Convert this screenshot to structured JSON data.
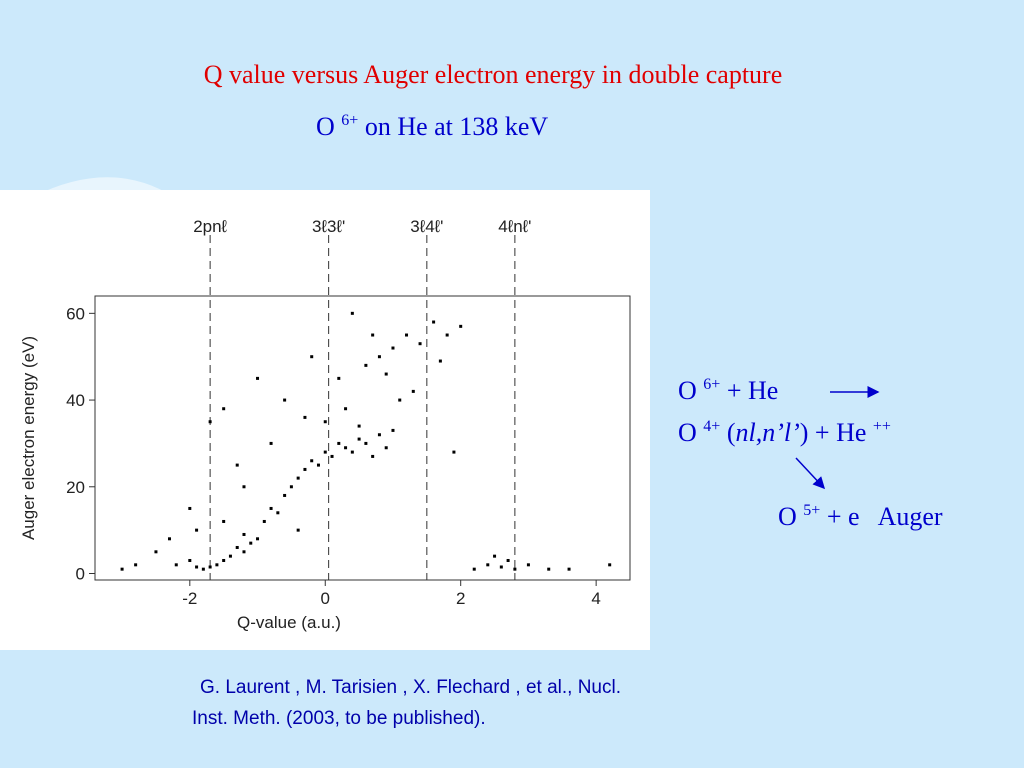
{
  "title": "Q value versus Auger electron energy in double capture",
  "subtitle": {
    "ion": "O",
    "charge": "6+",
    "rest": "on He at 138 keV"
  },
  "chart_data": {
    "type": "scatter",
    "x_label": "Q-value (a.u.)",
    "y_label": "Auger electron energy (eV)",
    "xlim": [
      -3.4,
      4.5
    ],
    "ylim": [
      -1.5,
      64
    ],
    "xticks": [
      -2,
      0,
      2,
      4
    ],
    "yticks": [
      0,
      20,
      40,
      60
    ],
    "color": "#000000",
    "markers": [
      {
        "label": "2pnℓ",
        "x": -1.7
      },
      {
        "label": "3ℓ3ℓ'",
        "x": 0.05
      },
      {
        "label": "3ℓ4ℓ'",
        "x": 1.5
      },
      {
        "label": "4ℓnℓ'",
        "x": 2.8
      }
    ],
    "x": [
      -2.2,
      -2.0,
      -1.9,
      -1.8,
      -1.7,
      -1.6,
      -1.5,
      -1.4,
      -1.3,
      -1.2,
      -1.1,
      -1.0,
      -2.3,
      -1.9,
      -1.5,
      -1.2,
      -0.9,
      -0.8,
      -0.7,
      -0.6,
      -0.5,
      -0.4,
      -0.3,
      -0.2,
      -0.1,
      0.0,
      0.1,
      0.2,
      0.3,
      0.4,
      0.5,
      0.6,
      0.7,
      0.8,
      0.9,
      1.0,
      -0.3,
      0.0,
      0.3,
      0.5,
      -0.6,
      0.2,
      0.6,
      0.8,
      1.0,
      1.2,
      1.4,
      1.6,
      1.8,
      2.0,
      0.4,
      0.9,
      1.3,
      1.7,
      -1.2,
      -0.8,
      -2.5,
      -1.7,
      -1.0,
      2.2,
      2.4,
      2.6,
      2.8,
      3.0,
      2.5,
      2.7,
      3.3,
      -3.0,
      -2.8,
      3.6,
      4.2,
      -0.2,
      0.7,
      1.1,
      -1.5,
      -1.3,
      -2.0,
      1.9,
      -0.4
    ],
    "y": [
      2,
      3,
      1.5,
      1,
      1.5,
      2,
      3,
      4,
      6,
      5,
      7,
      8,
      8,
      10,
      12,
      9,
      12,
      15,
      14,
      18,
      20,
      22,
      24,
      26,
      25,
      28,
      27,
      30,
      29,
      28,
      31,
      30,
      27,
      32,
      29,
      33,
      36,
      35,
      38,
      34,
      40,
      45,
      48,
      50,
      52,
      55,
      53,
      58,
      55,
      57,
      60,
      46,
      42,
      49,
      20,
      30,
      5,
      35,
      45,
      1,
      2,
      1.5,
      1,
      2,
      4,
      3,
      1,
      1,
      2,
      1,
      2,
      50,
      55,
      40,
      38,
      25,
      15,
      28,
      10
    ]
  },
  "reaction": {
    "line1": {
      "ion": "O",
      "charge": "6+",
      "rest": "+ He"
    },
    "line2": {
      "ion": "O",
      "charge": "4+",
      "open": "(",
      "state": "nl,n’l’",
      "close": ") + He",
      "target_charge": "++"
    },
    "line3": {
      "ion": "O",
      "charge": "5+",
      "rest": "+ e",
      "label": "Auger"
    }
  },
  "citation": [
    "G. Laurent , M. Tarisien , X. Flechard , et al., Nucl.",
    "Inst. Meth. (2003, to be published)."
  ]
}
